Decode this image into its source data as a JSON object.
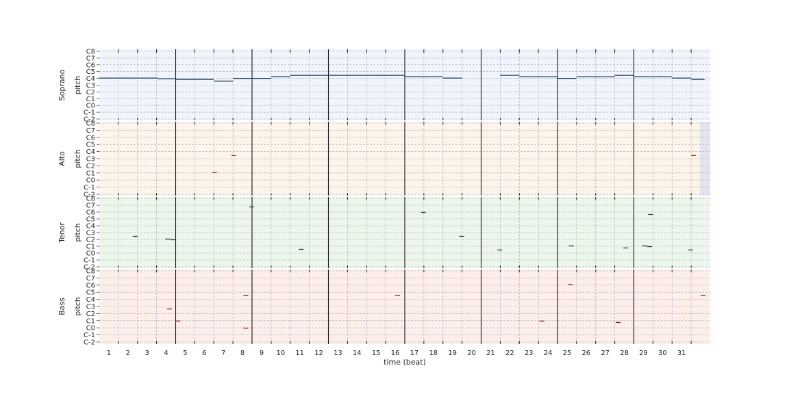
{
  "chart_data": {
    "type": "piano-roll",
    "xlabel": "time (beat)",
    "ylabel": "pitch",
    "x_ticks": [
      "1",
      "2",
      "3",
      "4",
      "5",
      "6",
      "7",
      "8",
      "9",
      "10",
      "11",
      "12",
      "13",
      "14",
      "15",
      "16",
      "17",
      "18",
      "19",
      "20",
      "21",
      "22",
      "23",
      "24",
      "25",
      "26",
      "27",
      "28",
      "29",
      "30",
      "31"
    ],
    "y_ticks": [
      "C-2",
      "C-1",
      "C0",
      "C1",
      "C2",
      "C3",
      "C4",
      "C5",
      "C6",
      "C7",
      "C8"
    ],
    "xlim": [
      0.5,
      32.5
    ],
    "downbeat_lines": [
      4.5,
      8.5,
      12.5,
      16.5,
      20.5,
      24.5,
      28.5
    ],
    "grid": true,
    "tracks": [
      {
        "name": "Soprano",
        "background": "#f1f5fb",
        "note_color": "#1f3b5a",
        "notes": [
          {
            "start": 0.5,
            "end": 2.55,
            "pitch": 4.05
          },
          {
            "start": 2.55,
            "end": 3.55,
            "pitch": 4.05
          },
          {
            "start": 3.55,
            "end": 4.5,
            "pitch": 3.95
          },
          {
            "start": 4.5,
            "end": 6.5,
            "pitch": 3.85
          },
          {
            "start": 6.5,
            "end": 7.5,
            "pitch": 3.6
          },
          {
            "start": 7.5,
            "end": 9.5,
            "pitch": 4.0
          },
          {
            "start": 9.5,
            "end": 10.5,
            "pitch": 4.25
          },
          {
            "start": 10.5,
            "end": 16.5,
            "pitch": 4.45
          },
          {
            "start": 16.5,
            "end": 18.5,
            "pitch": 4.25
          },
          {
            "start": 18.5,
            "end": 19.5,
            "pitch": 4.05
          },
          {
            "start": 21.5,
            "end": 22.5,
            "pitch": 4.45
          },
          {
            "start": 22.5,
            "end": 24.5,
            "pitch": 4.25
          },
          {
            "start": 24.5,
            "end": 25.5,
            "pitch": 4.0
          },
          {
            "start": 25.5,
            "end": 27.5,
            "pitch": 4.25
          },
          {
            "start": 27.5,
            "end": 28.5,
            "pitch": 4.45
          },
          {
            "start": 28.5,
            "end": 30.5,
            "pitch": 4.25
          },
          {
            "start": 30.5,
            "end": 31.5,
            "pitch": 4.05
          },
          {
            "start": 31.5,
            "end": 32.2,
            "pitch": 3.85
          }
        ]
      },
      {
        "name": "Alto",
        "background": "#fdf4ea",
        "note_color": "#9a3412",
        "end_shade_from": 31.95,
        "notes": [
          {
            "start": 6.42,
            "end": 6.65,
            "pitch": 1.05
          },
          {
            "start": 7.42,
            "end": 7.65,
            "pitch": 3.45
          },
          {
            "start": 31.5,
            "end": 31.75,
            "pitch": 3.45
          }
        ]
      },
      {
        "name": "Tenor",
        "background": "#edf6eb",
        "note_color": "#1e3a1e",
        "notes": [
          {
            "start": 2.25,
            "end": 2.5,
            "pitch": 2.45
          },
          {
            "start": 3.95,
            "end": 4.25,
            "pitch": 2.05
          },
          {
            "start": 4.25,
            "end": 4.5,
            "pitch": 1.95
          },
          {
            "start": 8.35,
            "end": 8.6,
            "pitch": 6.75
          },
          {
            "start": 10.95,
            "end": 11.2,
            "pitch": 0.55
          },
          {
            "start": 17.35,
            "end": 17.6,
            "pitch": 5.95
          },
          {
            "start": 19.35,
            "end": 19.6,
            "pitch": 2.45
          },
          {
            "start": 21.35,
            "end": 21.6,
            "pitch": 0.45
          },
          {
            "start": 25.1,
            "end": 25.35,
            "pitch": 1.05
          },
          {
            "start": 27.95,
            "end": 28.2,
            "pitch": 0.75
          },
          {
            "start": 28.95,
            "end": 29.2,
            "pitch": 1.05
          },
          {
            "start": 29.2,
            "end": 29.45,
            "pitch": 0.95
          },
          {
            "start": 29.25,
            "end": 29.5,
            "pitch": 5.65
          },
          {
            "start": 31.35,
            "end": 31.6,
            "pitch": 0.45
          }
        ]
      },
      {
        "name": "Bass",
        "background": "#fdeeea",
        "note_color": "#7f1d1d",
        "notes": [
          {
            "start": 4.05,
            "end": 4.3,
            "pitch": 2.65
          },
          {
            "start": 4.5,
            "end": 4.75,
            "pitch": 0.95
          },
          {
            "start": 8.05,
            "end": 8.3,
            "pitch": 4.55
          },
          {
            "start": 8.05,
            "end": 8.3,
            "pitch": -0.05
          },
          {
            "start": 16.0,
            "end": 16.25,
            "pitch": 4.55
          },
          {
            "start": 23.55,
            "end": 23.8,
            "pitch": 0.95
          },
          {
            "start": 25.05,
            "end": 25.3,
            "pitch": 6.05
          },
          {
            "start": 27.55,
            "end": 27.8,
            "pitch": 0.75
          },
          {
            "start": 32.0,
            "end": 32.25,
            "pitch": 4.55
          }
        ]
      }
    ]
  }
}
